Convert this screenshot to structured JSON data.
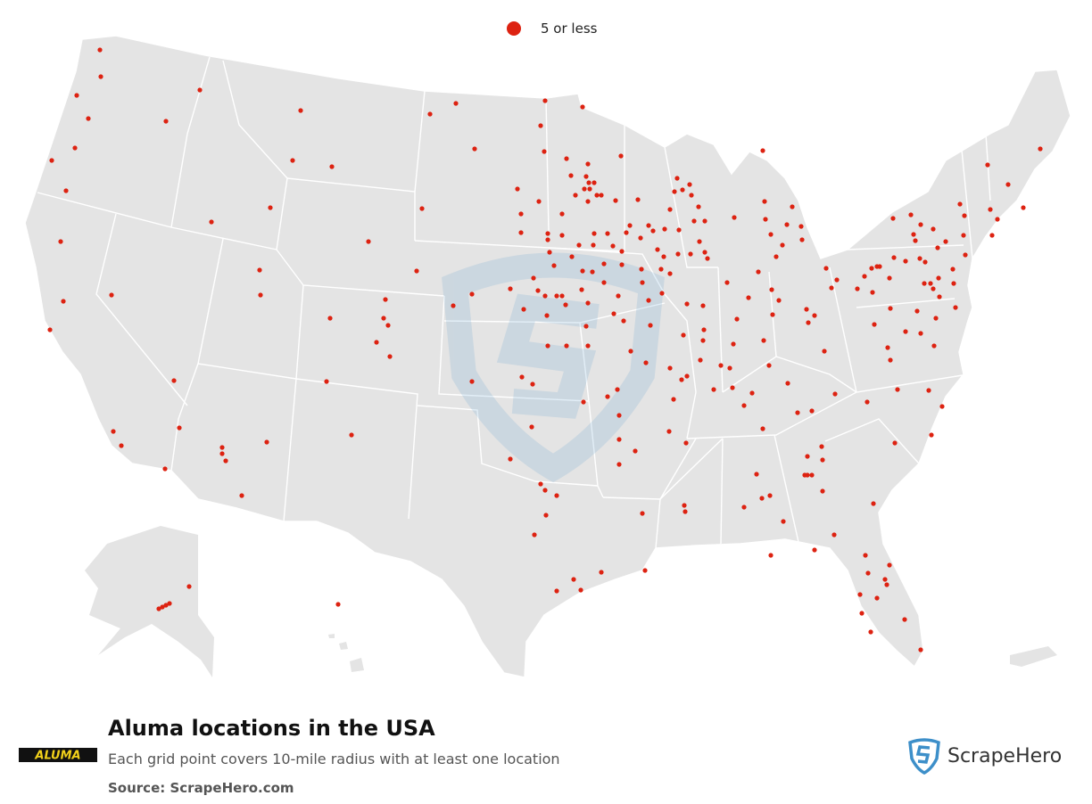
{
  "legend": {
    "label": "5 or less",
    "color": "#dd2211"
  },
  "title": "Aluma locations in the USA",
  "subtitle": "Each grid point covers 10-mile radius with at least one location",
  "source": "Source: ScrapeHero.com",
  "brand_logo_text": "ALUMA",
  "scrapehero_logo": {
    "text": "ScrapeHero",
    "color": "#3d8fc9"
  },
  "map": {
    "land_color": "#e4e4e4",
    "border_color": "#ffffff",
    "watermark": "shield-s"
  }
}
